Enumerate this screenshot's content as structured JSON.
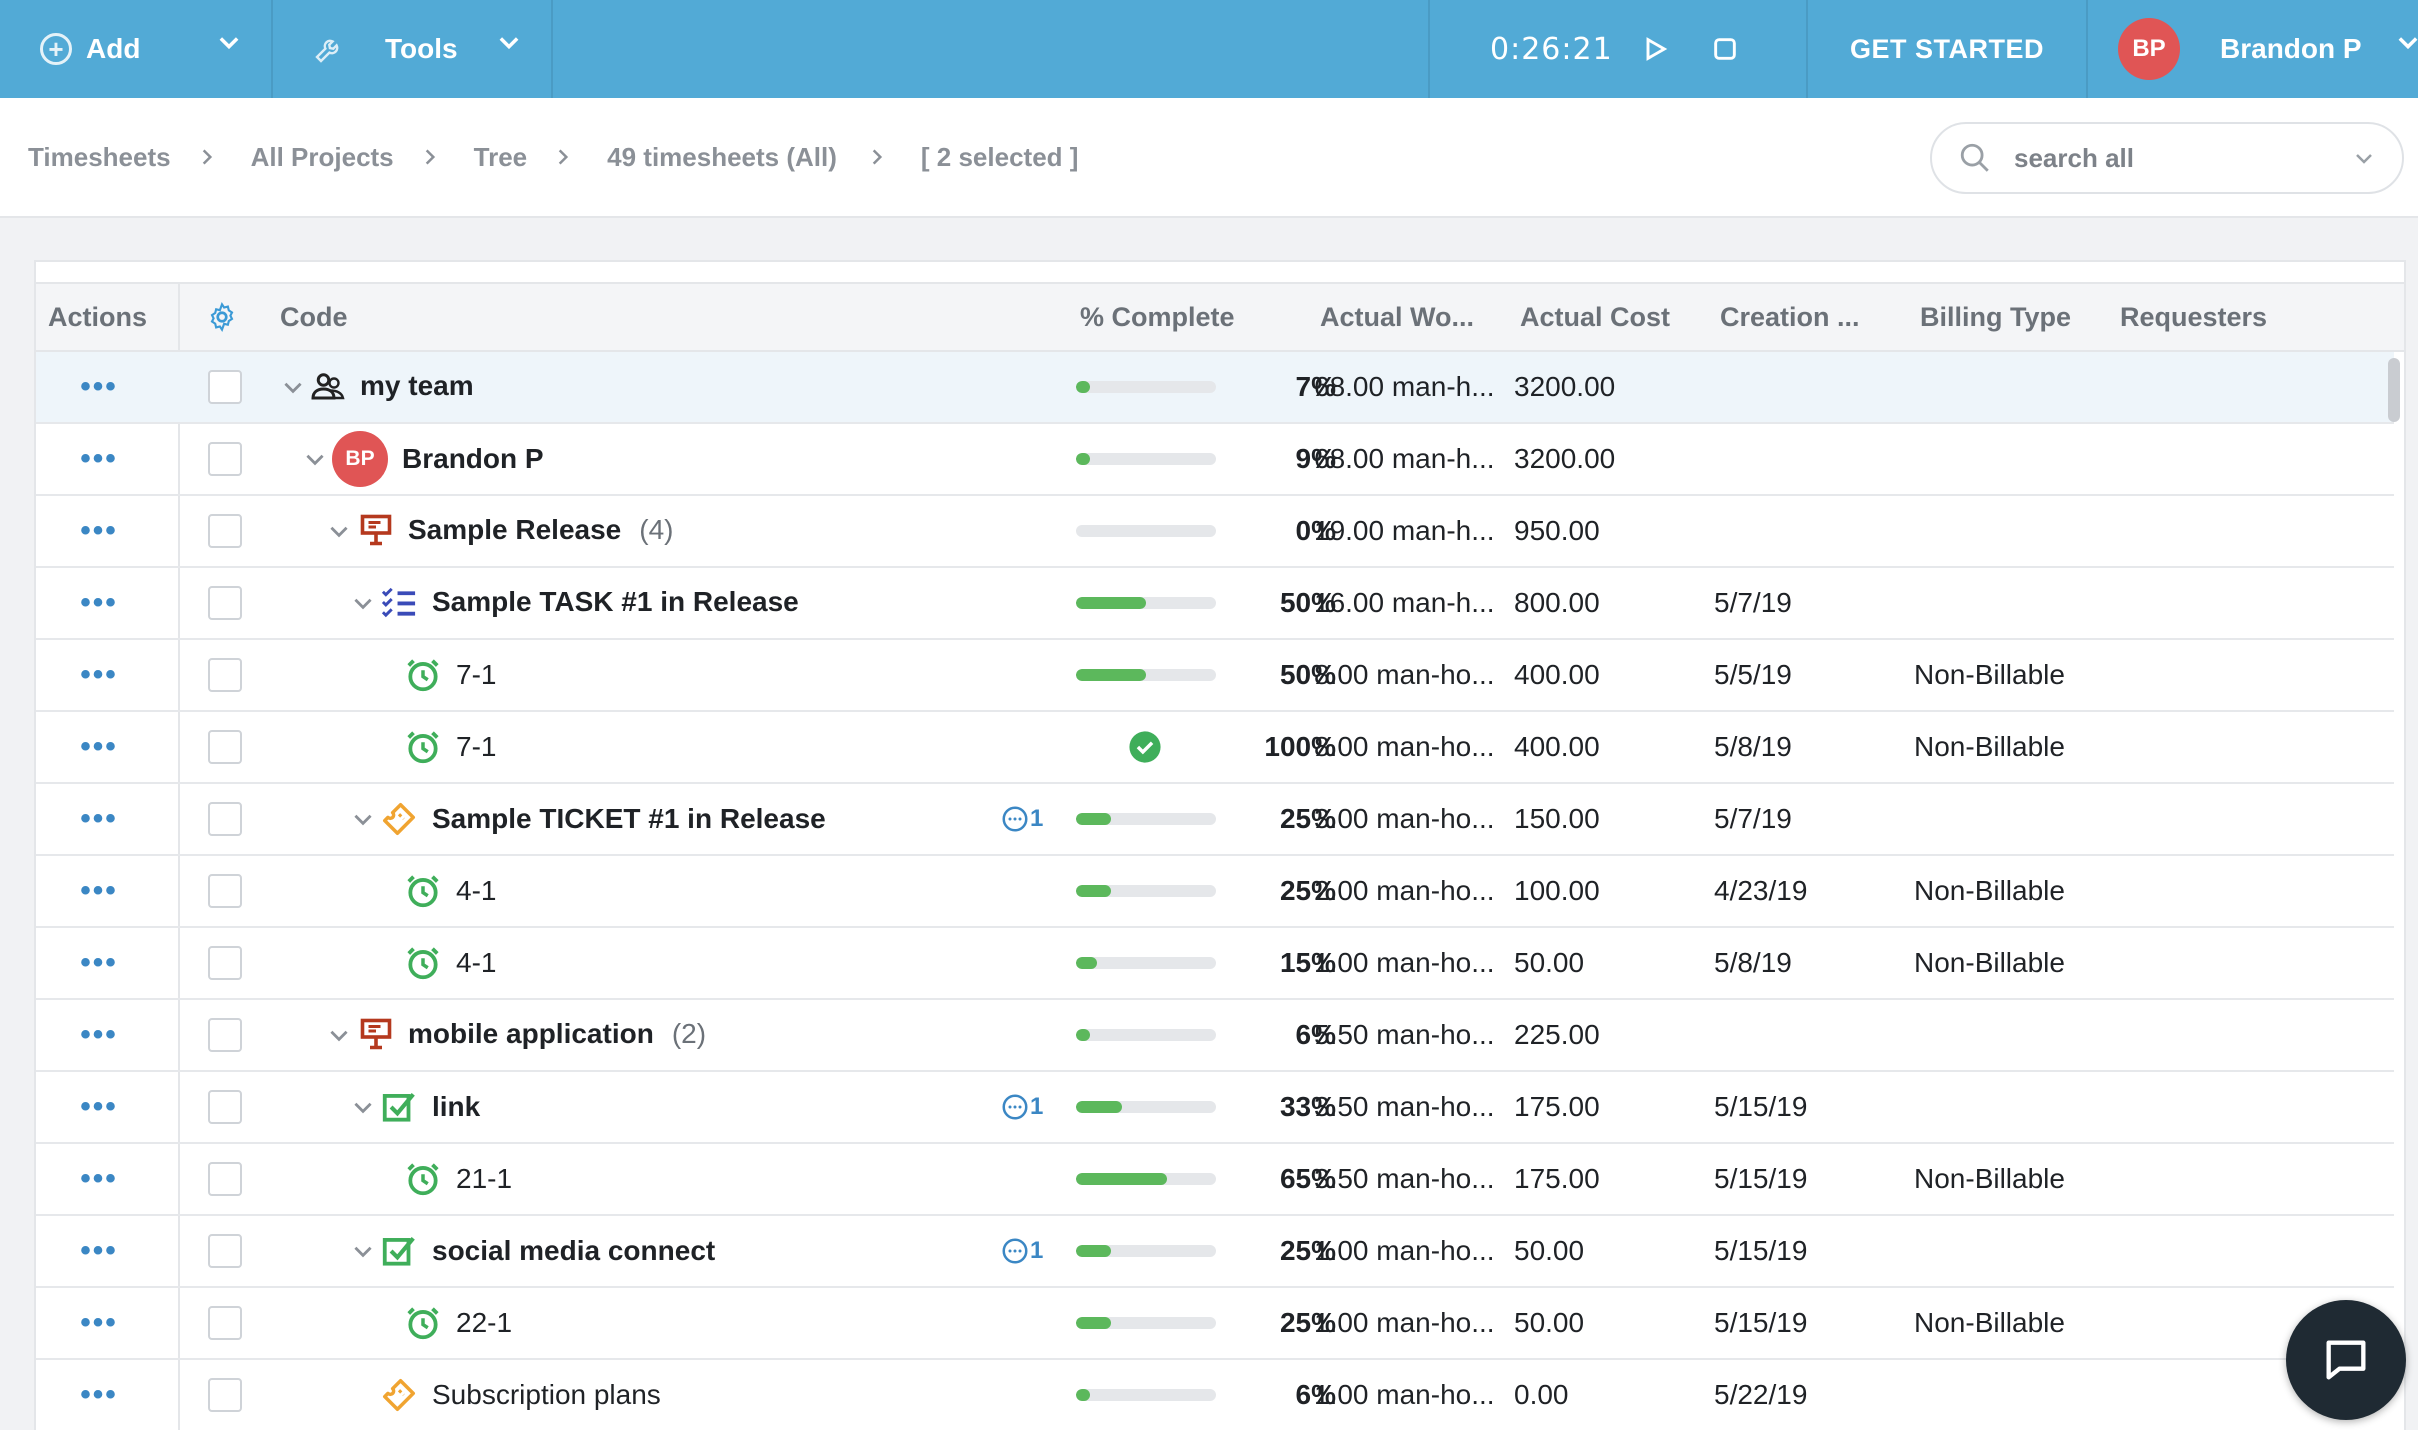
{
  "topbar": {
    "add_label": "Add",
    "tools_label": "Tools",
    "timer": "0:26:21",
    "get_started": "GET STARTED",
    "user_initials": "BP",
    "user_name": "Brandon P",
    "accent": "#52aad6"
  },
  "breadcrumb": [
    "Timesheets",
    "All Projects",
    "Tree",
    "49 timesheets (All)",
    "[ 2 selected ]"
  ],
  "search": {
    "placeholder": "search all"
  },
  "columns": {
    "actions": "Actions",
    "code": "Code",
    "complete": "% Complete",
    "work": "Actual Wo...",
    "cost": "Actual Cost",
    "created": "Creation ...",
    "billing": "Billing Type",
    "requesters": "Requesters"
  },
  "rows": [
    {
      "name": "my team",
      "icon": "team-icon",
      "level": 0,
      "expanded": true,
      "bold": true,
      "count": "",
      "comments": "",
      "progress": 7,
      "pct": "7%",
      "work": "68.00 man-h...",
      "cost": "3200.00",
      "created": "",
      "billing": ""
    },
    {
      "name": "Brandon P",
      "icon": "avatar",
      "initials": "BP",
      "level": 1,
      "expanded": true,
      "bold": true,
      "count": "",
      "comments": "",
      "progress": 9,
      "pct": "9%",
      "work": "68.00 man-h...",
      "cost": "3200.00",
      "created": "",
      "billing": ""
    },
    {
      "name": "Sample Release",
      "icon": "release-icon",
      "level": 2,
      "expanded": true,
      "bold": true,
      "count": "(4)",
      "comments": "",
      "progress": 0,
      "pct": "0%",
      "work": "19.00 man-h...",
      "cost": "950.00",
      "created": "",
      "billing": ""
    },
    {
      "name": "Sample TASK #1 in Release",
      "icon": "task-list-icon",
      "level": 3,
      "expanded": true,
      "bold": true,
      "count": "",
      "comments": "",
      "progress": 50,
      "pct": "50%",
      "work": "16.00 man-h...",
      "cost": "800.00",
      "created": "5/7/19",
      "billing": ""
    },
    {
      "name": "7-1",
      "icon": "alarm-clock-icon",
      "level": 4,
      "expanded": null,
      "bold": false,
      "count": "",
      "comments": "",
      "progress": 50,
      "pct": "50%",
      "work": "8.00 man-ho...",
      "cost": "400.00",
      "created": "5/5/19",
      "billing": "Non-Billable"
    },
    {
      "name": "7-1",
      "icon": "alarm-clock-icon",
      "level": 4,
      "expanded": null,
      "bold": false,
      "count": "",
      "comments": "",
      "progress": 100,
      "pct": "100%",
      "work": "8.00 man-ho...",
      "cost": "400.00",
      "created": "5/8/19",
      "billing": "Non-Billable"
    },
    {
      "name": "Sample TICKET #1 in Release",
      "icon": "ticket-icon",
      "level": 3,
      "expanded": true,
      "bold": true,
      "count": "",
      "comments": "1",
      "progress": 25,
      "pct": "25%",
      "work": "3.00 man-ho...",
      "cost": "150.00",
      "created": "5/7/19",
      "billing": ""
    },
    {
      "name": "4-1",
      "icon": "alarm-clock-icon",
      "level": 4,
      "expanded": null,
      "bold": false,
      "count": "",
      "comments": "",
      "progress": 25,
      "pct": "25%",
      "work": "2.00 man-ho...",
      "cost": "100.00",
      "created": "4/23/19",
      "billing": "Non-Billable"
    },
    {
      "name": "4-1",
      "icon": "alarm-clock-icon",
      "level": 4,
      "expanded": null,
      "bold": false,
      "count": "",
      "comments": "",
      "progress": 15,
      "pct": "15%",
      "work": "1.00 man-ho...",
      "cost": "50.00",
      "created": "5/8/19",
      "billing": "Non-Billable"
    },
    {
      "name": "mobile application",
      "icon": "release-icon",
      "level": 2,
      "expanded": true,
      "bold": true,
      "count": "(2)",
      "comments": "",
      "progress": 6,
      "pct": "6%",
      "work": "5.50 man-ho...",
      "cost": "225.00",
      "created": "",
      "billing": ""
    },
    {
      "name": "link",
      "icon": "checkbox-task-icon",
      "level": 3,
      "expanded": true,
      "bold": true,
      "count": "",
      "comments": "1",
      "progress": 33,
      "pct": "33%",
      "work": "3.50 man-ho...",
      "cost": "175.00",
      "created": "5/15/19",
      "billing": ""
    },
    {
      "name": "21-1",
      "icon": "alarm-clock-icon",
      "level": 4,
      "expanded": null,
      "bold": false,
      "count": "",
      "comments": "",
      "progress": 65,
      "pct": "65%",
      "work": "3.50 man-ho...",
      "cost": "175.00",
      "created": "5/15/19",
      "billing": "Non-Billable"
    },
    {
      "name": "social media connect",
      "icon": "checkbox-task-icon",
      "level": 3,
      "expanded": true,
      "bold": true,
      "count": "",
      "comments": "1",
      "progress": 25,
      "pct": "25%",
      "work": "1.00 man-ho...",
      "cost": "50.00",
      "created": "5/15/19",
      "billing": ""
    },
    {
      "name": "22-1",
      "icon": "alarm-clock-icon",
      "level": 4,
      "expanded": null,
      "bold": false,
      "count": "",
      "comments": "",
      "progress": 25,
      "pct": "25%",
      "work": "1.00 man-ho...",
      "cost": "50.00",
      "created": "5/15/19",
      "billing": "Non-Billable"
    },
    {
      "name": "Subscription plans",
      "icon": "ticket-icon",
      "level": 3,
      "expanded": null,
      "bold": false,
      "count": "",
      "comments": "",
      "progress": 6,
      "pct": "6%",
      "work": "1.00 man-ho...",
      "cost": "0.00",
      "created": "5/22/19",
      "billing": ""
    }
  ]
}
